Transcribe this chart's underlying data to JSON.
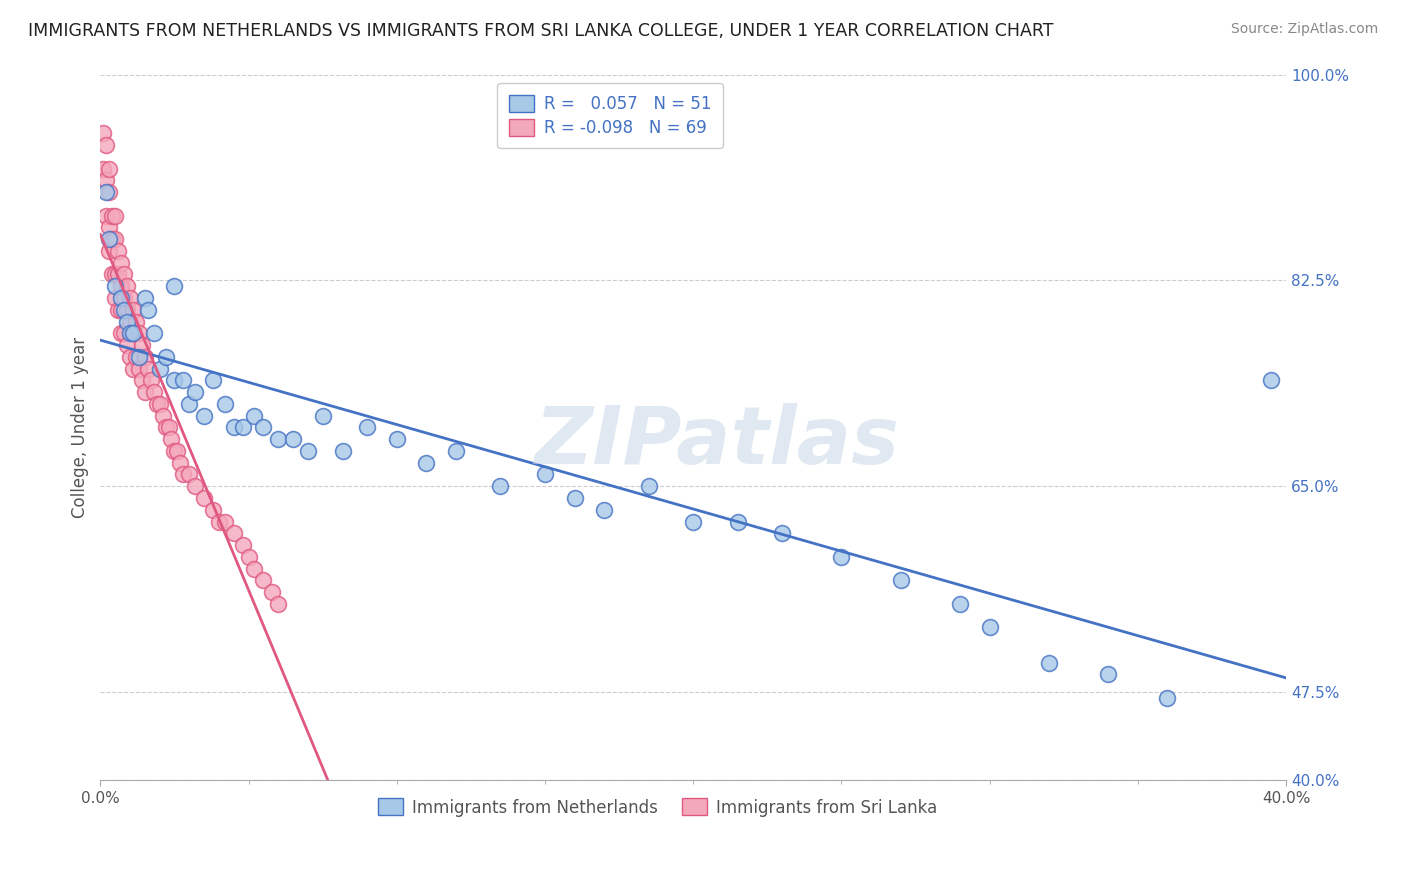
{
  "title": "IMMIGRANTS FROM NETHERLANDS VS IMMIGRANTS FROM SRI LANKA COLLEGE, UNDER 1 YEAR CORRELATION CHART",
  "source": "Source: ZipAtlas.com",
  "ylabel": "College, Under 1 year",
  "legend_label_1": "Immigrants from Netherlands",
  "legend_label_2": "Immigrants from Sri Lanka",
  "R1": 0.057,
  "N1": 51,
  "R2": -0.098,
  "N2": 69,
  "xlim": [
    0.0,
    0.4
  ],
  "ylim": [
    0.4,
    1.0
  ],
  "xticklabels": [
    "0.0%",
    "40.0%"
  ],
  "xtick_positions": [
    0.0,
    0.4
  ],
  "ytick_vals": [
    0.4,
    0.475,
    0.65,
    0.825,
    1.0
  ],
  "ytick_labels": [
    "40.0%",
    "47.5%",
    "65.0%",
    "82.5%",
    "100.0%"
  ],
  "color_netherlands": "#a8c8e8",
  "color_sri_lanka": "#f4a8bc",
  "color_line_netherlands": "#4472c4",
  "color_line_sri_lanka": "#e05880",
  "color_line_dashed": "#e8b8c8",
  "background_color": "#ffffff",
  "watermark": "ZIPatlas",
  "nl_x": [
    0.002,
    0.003,
    0.005,
    0.007,
    0.008,
    0.009,
    0.01,
    0.011,
    0.013,
    0.015,
    0.016,
    0.018,
    0.02,
    0.022,
    0.025,
    0.025,
    0.028,
    0.03,
    0.032,
    0.035,
    0.038,
    0.042,
    0.045,
    0.048,
    0.052,
    0.055,
    0.06,
    0.065,
    0.07,
    0.075,
    0.082,
    0.09,
    0.1,
    0.11,
    0.12,
    0.135,
    0.15,
    0.16,
    0.17,
    0.185,
    0.2,
    0.215,
    0.23,
    0.25,
    0.27,
    0.29,
    0.3,
    0.32,
    0.34,
    0.36,
    0.395
  ],
  "nl_y": [
    0.9,
    0.86,
    0.82,
    0.81,
    0.8,
    0.79,
    0.78,
    0.78,
    0.76,
    0.81,
    0.8,
    0.78,
    0.75,
    0.76,
    0.74,
    0.82,
    0.74,
    0.72,
    0.73,
    0.71,
    0.74,
    0.72,
    0.7,
    0.7,
    0.71,
    0.7,
    0.69,
    0.69,
    0.68,
    0.71,
    0.68,
    0.7,
    0.69,
    0.67,
    0.68,
    0.65,
    0.66,
    0.64,
    0.63,
    0.65,
    0.62,
    0.62,
    0.61,
    0.59,
    0.57,
    0.55,
    0.53,
    0.5,
    0.49,
    0.47,
    0.74
  ],
  "sl_x": [
    0.001,
    0.001,
    0.002,
    0.002,
    0.002,
    0.003,
    0.003,
    0.003,
    0.003,
    0.004,
    0.004,
    0.004,
    0.005,
    0.005,
    0.005,
    0.005,
    0.006,
    0.006,
    0.006,
    0.007,
    0.007,
    0.007,
    0.007,
    0.008,
    0.008,
    0.008,
    0.009,
    0.009,
    0.009,
    0.01,
    0.01,
    0.01,
    0.011,
    0.011,
    0.011,
    0.012,
    0.012,
    0.013,
    0.013,
    0.014,
    0.014,
    0.015,
    0.015,
    0.016,
    0.017,
    0.018,
    0.019,
    0.02,
    0.021,
    0.022,
    0.023,
    0.024,
    0.025,
    0.026,
    0.027,
    0.028,
    0.03,
    0.032,
    0.035,
    0.038,
    0.04,
    0.042,
    0.045,
    0.048,
    0.05,
    0.052,
    0.055,
    0.058,
    0.06
  ],
  "sl_y": [
    0.95,
    0.92,
    0.94,
    0.91,
    0.88,
    0.92,
    0.9,
    0.87,
    0.85,
    0.88,
    0.86,
    0.83,
    0.88,
    0.86,
    0.83,
    0.81,
    0.85,
    0.83,
    0.8,
    0.84,
    0.82,
    0.8,
    0.78,
    0.83,
    0.81,
    0.78,
    0.82,
    0.8,
    0.77,
    0.81,
    0.79,
    0.76,
    0.8,
    0.78,
    0.75,
    0.79,
    0.76,
    0.78,
    0.75,
    0.77,
    0.74,
    0.76,
    0.73,
    0.75,
    0.74,
    0.73,
    0.72,
    0.72,
    0.71,
    0.7,
    0.7,
    0.69,
    0.68,
    0.68,
    0.67,
    0.66,
    0.66,
    0.65,
    0.64,
    0.63,
    0.62,
    0.62,
    0.61,
    0.6,
    0.59,
    0.58,
    0.57,
    0.56,
    0.55
  ]
}
